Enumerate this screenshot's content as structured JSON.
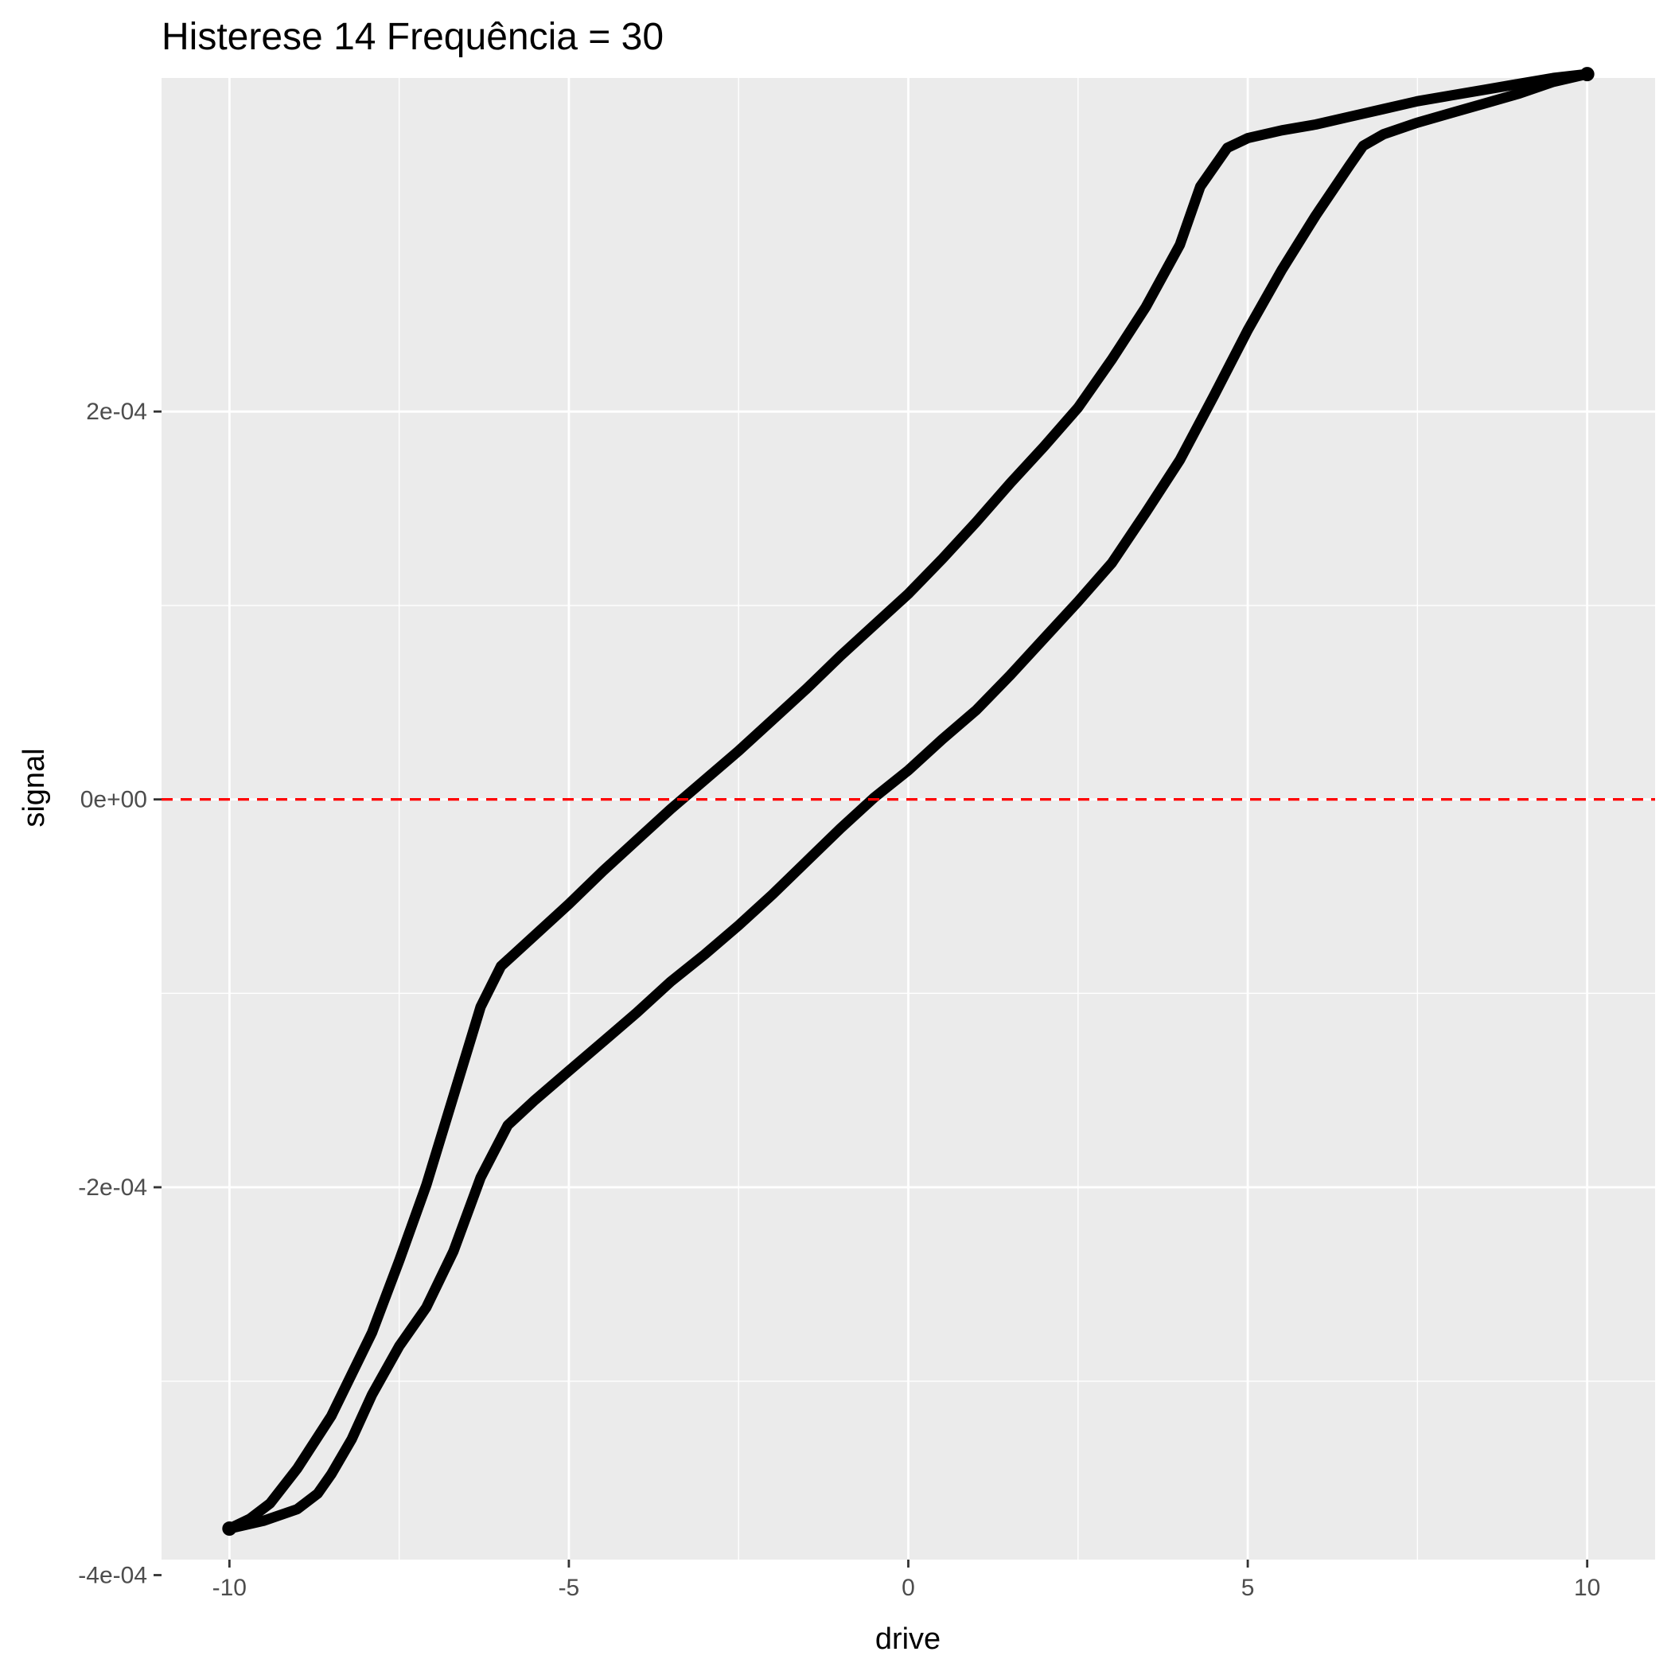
{
  "chart_data": {
    "type": "line",
    "title": "Histerese 14 Frequência = 30",
    "xlabel": "drive",
    "ylabel": "signal",
    "xlim": [
      -11,
      11
    ],
    "ylim": [
      -0.000392,
      0.000372
    ],
    "x_ticks": [
      {
        "value": -10,
        "label": "-10"
      },
      {
        "value": -5,
        "label": "-5"
      },
      {
        "value": 0,
        "label": "0"
      },
      {
        "value": 5,
        "label": "5"
      },
      {
        "value": 10,
        "label": "10"
      }
    ],
    "y_ticks": [
      {
        "value": -0.0004,
        "label": "-4e-04"
      },
      {
        "value": -0.0002,
        "label": "-2e-04"
      },
      {
        "value": 0,
        "label": "0e+00"
      },
      {
        "value": 0.0002,
        "label": "2e-04"
      }
    ],
    "grid": true,
    "hline": {
      "y": 0,
      "color": "#ff0000",
      "style": "dashed"
    },
    "colors": {
      "panel": "#ebebeb",
      "grid": "#ffffff",
      "line": "#000000"
    },
    "series": [
      {
        "points": [
          [
            -10.0,
            -0.000376
          ],
          [
            -9.5,
            -0.000372
          ],
          [
            -9.0,
            -0.000366
          ],
          [
            -8.7,
            -0.000358
          ],
          [
            -8.5,
            -0.000348
          ],
          [
            -8.2,
            -0.00033
          ],
          [
            -7.9,
            -0.000307
          ],
          [
            -7.5,
            -0.000282
          ],
          [
            -7.1,
            -0.000262
          ],
          [
            -6.7,
            -0.000233
          ],
          [
            -6.3,
            -0.000195
          ],
          [
            -5.9,
            -0.000168
          ],
          [
            -5.5,
            -0.000155
          ],
          [
            -5.0,
            -0.00014
          ],
          [
            -4.5,
            -0.000125
          ],
          [
            -4.0,
            -0.00011
          ],
          [
            -3.5,
            -9.4e-05
          ],
          [
            -3.0,
            -8e-05
          ],
          [
            -2.5,
            -6.5e-05
          ],
          [
            -2.0,
            -4.9e-05
          ],
          [
            -1.5,
            -3.2e-05
          ],
          [
            -1.0,
            -1.5e-05
          ],
          [
            -0.5,
            1e-06
          ],
          [
            0.0,
            1.5e-05
          ],
          [
            0.5,
            3.1e-05
          ],
          [
            1.0,
            4.6e-05
          ],
          [
            1.5,
            6.4e-05
          ],
          [
            2.0,
            8.3e-05
          ],
          [
            2.5,
            0.000102
          ],
          [
            3.0,
            0.000122
          ],
          [
            3.5,
            0.000148
          ],
          [
            4.0,
            0.000175
          ],
          [
            4.5,
            0.000208
          ],
          [
            5.0,
            0.000242
          ],
          [
            5.5,
            0.000273
          ],
          [
            6.0,
            0.000301
          ],
          [
            6.5,
            0.000327
          ],
          [
            6.7,
            0.000337
          ],
          [
            7.0,
            0.000343
          ],
          [
            7.5,
            0.000349
          ],
          [
            8.0,
            0.000354
          ],
          [
            8.5,
            0.000359
          ],
          [
            9.0,
            0.000364
          ],
          [
            9.5,
            0.00037
          ],
          [
            10.0,
            0.000374
          ]
        ]
      },
      {
        "points": [
          [
            10.0,
            0.000374
          ],
          [
            9.5,
            0.000372
          ],
          [
            9.0,
            0.000369
          ],
          [
            8.5,
            0.000366
          ],
          [
            8.0,
            0.000363
          ],
          [
            7.5,
            0.00036
          ],
          [
            7.0,
            0.000356
          ],
          [
            6.5,
            0.000352
          ],
          [
            6.0,
            0.000348
          ],
          [
            5.5,
            0.000345
          ],
          [
            5.0,
            0.000341
          ],
          [
            4.7,
            0.000336
          ],
          [
            4.3,
            0.000316
          ],
          [
            4.0,
            0.000286
          ],
          [
            3.5,
            0.000254
          ],
          [
            3.0,
            0.000227
          ],
          [
            2.5,
            0.000202
          ],
          [
            2.0,
            0.000182
          ],
          [
            1.5,
            0.000163
          ],
          [
            1.0,
            0.000143
          ],
          [
            0.5,
            0.000124
          ],
          [
            0.0,
            0.000106
          ],
          [
            -0.5,
            9e-05
          ],
          [
            -1.0,
            7.4e-05
          ],
          [
            -1.5,
            5.7e-05
          ],
          [
            -2.0,
            4.1e-05
          ],
          [
            -2.5,
            2.5e-05
          ],
          [
            -3.0,
            1e-05
          ],
          [
            -3.5,
            -5e-06
          ],
          [
            -4.0,
            -2.1e-05
          ],
          [
            -4.5,
            -3.7e-05
          ],
          [
            -5.0,
            -5.4e-05
          ],
          [
            -5.5,
            -7e-05
          ],
          [
            -6.0,
            -8.6e-05
          ],
          [
            -6.3,
            -0.000107
          ],
          [
            -6.7,
            -0.000153
          ],
          [
            -7.1,
            -0.000199
          ],
          [
            -7.5,
            -0.000238
          ],
          [
            -7.9,
            -0.000275
          ],
          [
            -8.5,
            -0.000318
          ],
          [
            -9.0,
            -0.000345
          ],
          [
            -9.4,
            -0.000363
          ],
          [
            -9.7,
            -0.000371
          ],
          [
            -10.0,
            -0.000376
          ]
        ]
      }
    ]
  }
}
